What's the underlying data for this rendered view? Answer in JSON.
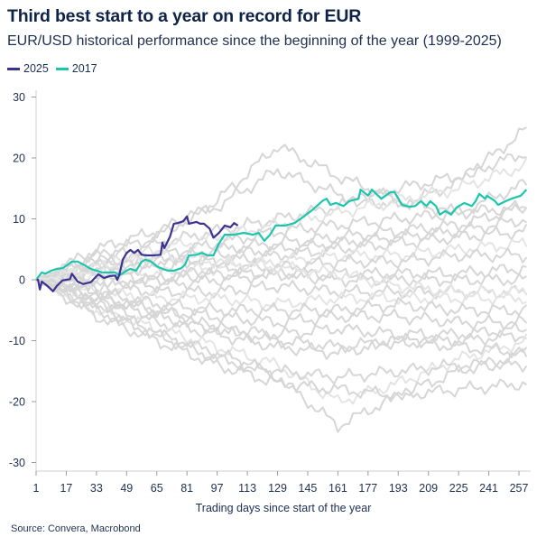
{
  "title": "Third best start to a year on record for EUR",
  "subtitle": "EUR/USD historical performance since the beginning of the year (1999-2025)",
  "source": "Source: Convera, Macrobond",
  "chart_data": {
    "type": "line",
    "title": "Third best start to a year on record for EUR",
    "subtitle": "EUR/USD historical performance since the beginning of the year (1999-2025)",
    "xlabel": "Trading days since start of the year",
    "ylabel": "",
    "xlim": [
      1,
      262
    ],
    "ylim": [
      -30,
      30
    ],
    "x_ticks": [
      1,
      17,
      33,
      49,
      65,
      81,
      97,
      113,
      129,
      145,
      161,
      177,
      193,
      209,
      225,
      241,
      257
    ],
    "y_ticks": [
      30,
      20,
      10,
      0,
      -10,
      -20,
      -30
    ],
    "grid": false,
    "legend": "top-left",
    "colors": {
      "2025": "#3b3391",
      "2017": "#1cc6ad",
      "other_years": "#d6d6d6"
    },
    "series": [
      {
        "name": "2025",
        "x": [
          1,
          2,
          3,
          4,
          7,
          10,
          12,
          15,
          19,
          20,
          23,
          26,
          30,
          34,
          37,
          40,
          43,
          44,
          45,
          47,
          49,
          51,
          53,
          55,
          57,
          60,
          63,
          67,
          68,
          69,
          72,
          74,
          76,
          79,
          81,
          82,
          86,
          88,
          90,
          93,
          95,
          98,
          101,
          104,
          106,
          108
        ],
        "y": [
          0,
          0,
          -1.6,
          -0.3,
          -1.0,
          -1.9,
          -1.0,
          -0.1,
          0.1,
          1.0,
          -0.3,
          -0.7,
          -0.4,
          0.9,
          0.3,
          0.6,
          0.7,
          0,
          0.7,
          3.3,
          4.4,
          4.9,
          4.4,
          4.9,
          4.1,
          4.0,
          4.0,
          4.1,
          6.1,
          5.2,
          7.1,
          9.2,
          9.3,
          9.6,
          10.4,
          9.2,
          9.5,
          9.2,
          9.2,
          8.4,
          6.9,
          7.7,
          8.9,
          8.6,
          9.3,
          8.9
        ]
      },
      {
        "name": "2017",
        "x": [
          1,
          4,
          6,
          9,
          12,
          15,
          18,
          20,
          23,
          26,
          30,
          33,
          36,
          39,
          43,
          45,
          49,
          51,
          54,
          57,
          59,
          62,
          65,
          68,
          71,
          74,
          78,
          80,
          82,
          86,
          89,
          92,
          95,
          98,
          101,
          106,
          111,
          116,
          119,
          122,
          125,
          128,
          133,
          138,
          143,
          148,
          153,
          155,
          157,
          160,
          164,
          167,
          172,
          173,
          177,
          179,
          184,
          189,
          191,
          195,
          199,
          202,
          205,
          208,
          210,
          213,
          215,
          218,
          221,
          224,
          228,
          232,
          234,
          236,
          239,
          240,
          244,
          246,
          250,
          253,
          256,
          258,
          261
        ],
        "y": [
          0,
          1.2,
          1.0,
          1.5,
          1.8,
          1.9,
          2.5,
          3.0,
          3.0,
          2.5,
          1.8,
          1.5,
          1.2,
          1.2,
          1.2,
          0.7,
          1.5,
          1.8,
          1.5,
          3.0,
          3.3,
          3.0,
          2.2,
          1.8,
          1.5,
          1.5,
          1.9,
          2.5,
          4.0,
          4.1,
          4.4,
          4.0,
          4.0,
          6.0,
          7.4,
          7.4,
          7.7,
          7.4,
          7.7,
          6.4,
          7.4,
          8.9,
          8.9,
          9.3,
          10.4,
          11.6,
          13.0,
          13.3,
          12.3,
          12.6,
          12.1,
          12.9,
          13.3,
          14.8,
          13.8,
          14.8,
          13.3,
          14.4,
          14.4,
          12.3,
          12.0,
          12.1,
          12.9,
          12.1,
          12.9,
          12.1,
          10.7,
          11.3,
          10.7,
          11.9,
          12.6,
          12.1,
          12.9,
          14.1,
          13.3,
          13.8,
          13.0,
          12.3,
          12.9,
          13.3,
          13.6,
          13.8,
          14.8
        ]
      }
    ],
    "other_years_x": [
      1,
      33,
      65,
      97,
      129,
      161,
      193,
      225,
      262
    ],
    "other_years": [
      [
        0,
        5,
        8,
        12,
        18,
        14,
        12,
        16,
        25
      ],
      [
        0,
        4,
        7,
        13,
        22,
        17,
        13,
        11,
        12
      ],
      [
        0,
        3,
        6,
        8,
        10,
        12,
        15,
        17,
        21
      ],
      [
        0,
        2,
        5,
        7,
        9,
        11,
        13,
        15,
        19
      ],
      [
        0,
        3,
        4,
        6,
        8,
        9,
        10,
        11,
        16
      ],
      [
        0,
        2,
        3,
        5,
        6,
        7,
        8,
        9,
        12
      ],
      [
        0,
        1,
        2,
        4,
        5,
        6,
        7,
        8,
        10
      ],
      [
        0,
        2,
        3,
        3,
        4,
        5,
        6,
        7,
        8
      ],
      [
        0,
        1,
        1,
        2,
        3,
        4,
        4,
        5,
        6
      ],
      [
        0,
        1,
        0,
        2,
        2,
        3,
        3,
        4,
        4
      ],
      [
        0,
        -1,
        0,
        1,
        1,
        1,
        1,
        1,
        2
      ],
      [
        0,
        0,
        -1,
        0,
        1,
        0,
        0,
        0,
        0
      ],
      [
        0,
        -1,
        -2,
        -2,
        -1,
        -2,
        -2,
        -2,
        -2
      ],
      [
        0,
        -2,
        -3,
        -3,
        -4,
        -3,
        -3,
        -3,
        -3
      ],
      [
        0,
        -2,
        -4,
        -5,
        -5,
        -5,
        -4,
        -5,
        -5
      ],
      [
        0,
        -3,
        -5,
        -6,
        -7,
        -6,
        -6,
        -7,
        -7
      ],
      [
        0,
        -3,
        -6,
        -8,
        -9,
        -8,
        -9,
        -9,
        -8
      ],
      [
        0,
        -4,
        -7,
        -9,
        -11,
        -12,
        -10,
        -10,
        -9
      ],
      [
        0,
        -5,
        -8,
        -11,
        -14,
        -20,
        -17,
        -13,
        -10
      ],
      [
        0,
        -4,
        -9,
        -12,
        -16,
        -24,
        -19,
        -15,
        -12
      ],
      [
        0,
        -5,
        -9,
        -13,
        -15,
        -16,
        -15,
        -14,
        -14
      ],
      [
        0,
        -6,
        -10,
        -14,
        -17,
        -18,
        -19,
        -18,
        -17
      ],
      [
        0,
        -3,
        -5,
        -8,
        -10,
        -11,
        -10,
        -11,
        -12
      ],
      [
        0,
        2,
        4,
        3,
        2,
        1,
        -1,
        -2,
        -2
      ]
    ]
  }
}
